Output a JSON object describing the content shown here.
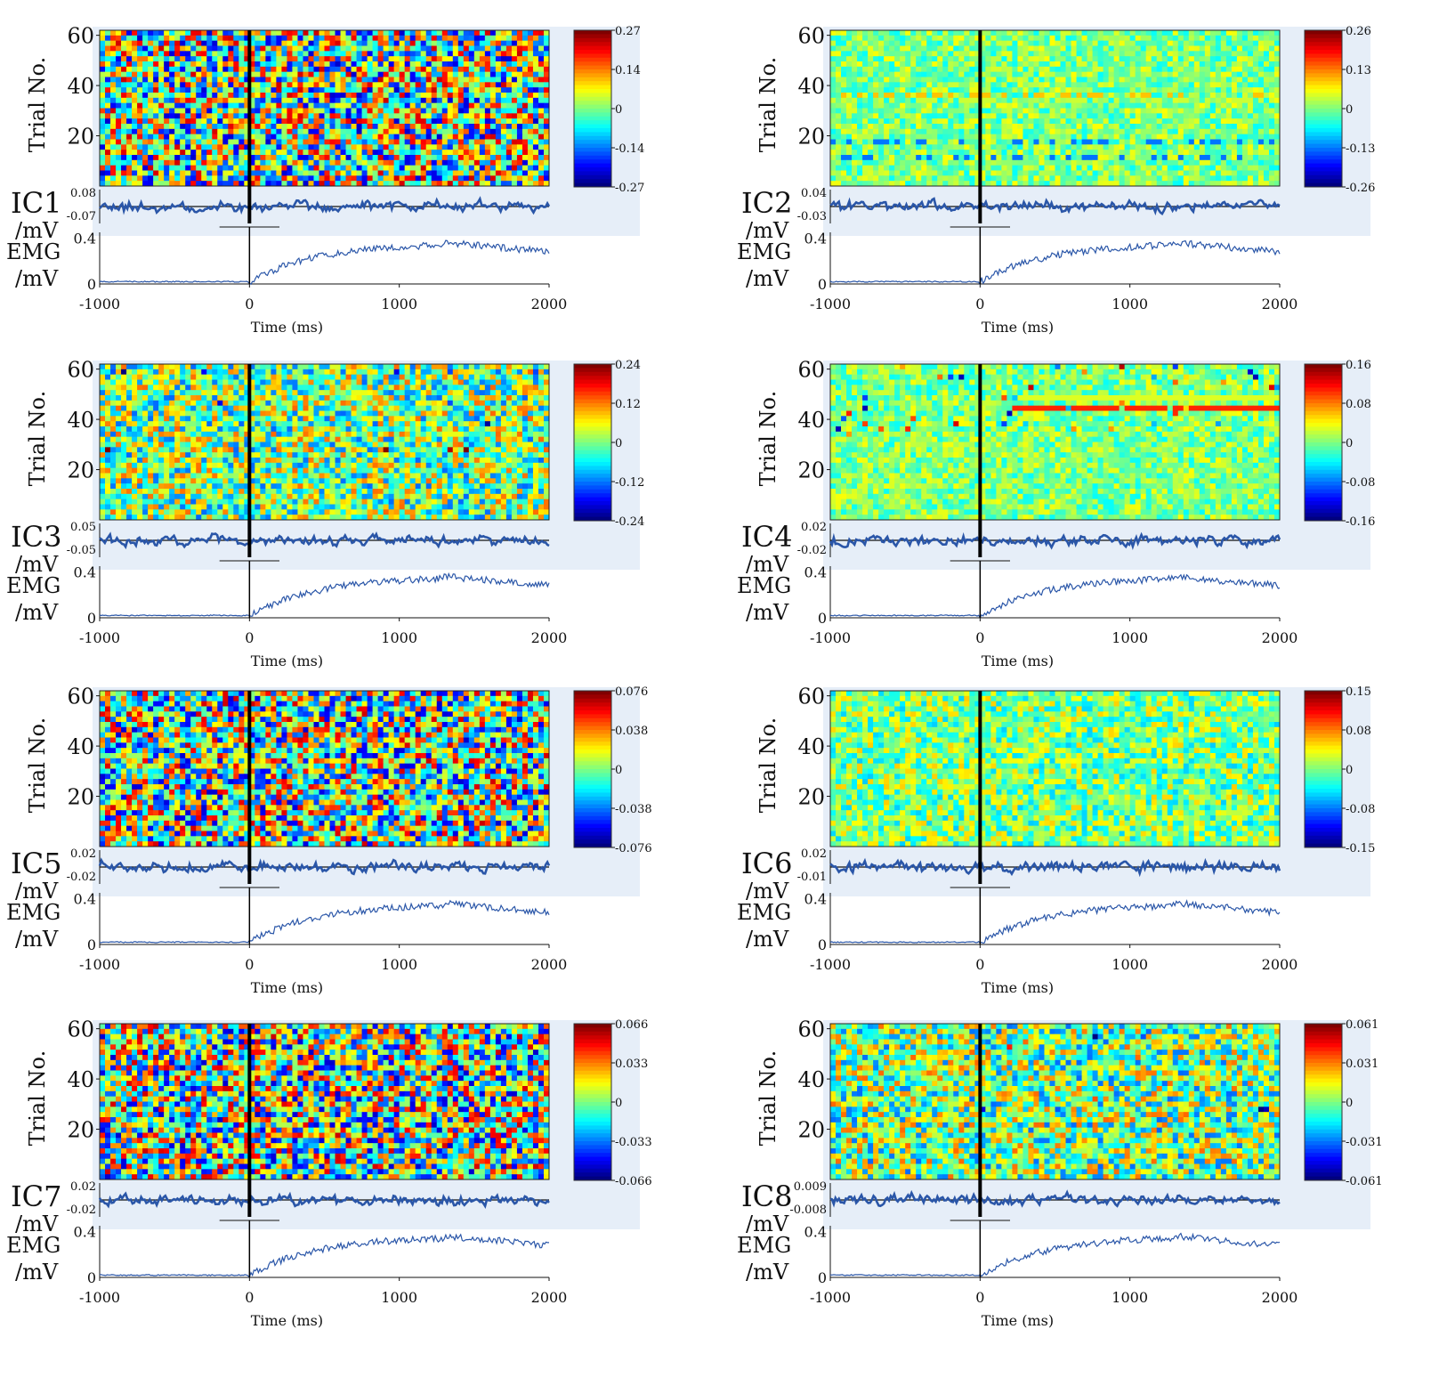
{
  "chart_data": [
    {
      "id": "IC1",
      "type": "heatmap",
      "ic_label": "IC1",
      "ylabel": "Trial No.",
      "y_ticks": [
        20,
        40,
        60
      ],
      "colorbar_ticks": [
        "0.27",
        "0.14",
        "0",
        "-0.14",
        "-0.27"
      ],
      "colorbar_range": [
        -0.27,
        0.27
      ],
      "ic_trace_ticks": [
        "0.08",
        "-0.07"
      ],
      "ic_unit": "/mV",
      "emg_label": "EMG",
      "emg_unit": "/mV",
      "emg_ticks": [
        "0.4",
        "0"
      ],
      "x_ticks": [
        "-1000",
        "0",
        "1000",
        "2000"
      ],
      "xlabel": "Time (ms)",
      "texture": "random"
    },
    {
      "id": "IC2",
      "type": "heatmap",
      "ic_label": "IC2",
      "ylabel": "Trial No.",
      "y_ticks": [
        20,
        40,
        60
      ],
      "colorbar_ticks": [
        "0.26",
        "0.13",
        "0",
        "-0.13",
        "-0.26"
      ],
      "colorbar_range": [
        -0.26,
        0.26
      ],
      "ic_trace_ticks": [
        "0.04",
        "-0.03"
      ],
      "ic_unit": "/mV",
      "emg_label": "EMG",
      "emg_unit": "/mV",
      "emg_ticks": [
        "0.4",
        "0"
      ],
      "x_ticks": [
        "-1000",
        "0",
        "1000",
        "2000"
      ],
      "xlabel": "Time (ms)",
      "texture": "bands"
    },
    {
      "id": "IC3",
      "type": "heatmap",
      "ic_label": "IC3",
      "ylabel": "Trial No.",
      "y_ticks": [
        20,
        40,
        60
      ],
      "colorbar_ticks": [
        "0.24",
        "0.12",
        "0",
        "-0.12",
        "-0.24"
      ],
      "colorbar_range": [
        -0.24,
        0.24
      ],
      "ic_trace_ticks": [
        "0.05",
        "-0.05"
      ],
      "ic_unit": "/mV",
      "emg_label": "EMG",
      "emg_unit": "/mV",
      "emg_ticks": [
        "0.4",
        "0"
      ],
      "x_ticks": [
        "-1000",
        "0",
        "1000",
        "2000"
      ],
      "xlabel": "Time (ms)",
      "texture": "mixed"
    },
    {
      "id": "IC4",
      "type": "heatmap",
      "ic_label": "IC4",
      "ylabel": "Trial No.",
      "y_ticks": [
        20,
        40,
        60
      ],
      "colorbar_ticks": [
        "0.16",
        "0.08",
        "0",
        "-0.08",
        "-0.16"
      ],
      "colorbar_range": [
        -0.16,
        0.16
      ],
      "ic_trace_ticks": [
        "0.02",
        "-0.02"
      ],
      "ic_unit": "/mV",
      "emg_label": "EMG",
      "emg_unit": "/mV",
      "emg_ticks": [
        "0.4",
        "0"
      ],
      "x_ticks": [
        "-1000",
        "0",
        "1000",
        "2000"
      ],
      "xlabel": "Time (ms)",
      "texture": "bands-top"
    },
    {
      "id": "IC5",
      "type": "heatmap",
      "ic_label": "IC5",
      "ylabel": "Trial No.",
      "y_ticks": [
        20,
        40,
        60
      ],
      "colorbar_ticks": [
        "0.076",
        "0.038",
        "0",
        "-0.038",
        "-0.076"
      ],
      "colorbar_range": [
        -0.076,
        0.076
      ],
      "ic_trace_ticks": [
        "0.02",
        "-0.02"
      ],
      "ic_unit": "/mV",
      "emg_label": "EMG",
      "emg_unit": "/mV",
      "emg_ticks": [
        "0.4",
        "0"
      ],
      "x_ticks": [
        "-1000",
        "0",
        "1000",
        "2000"
      ],
      "xlabel": "Time (ms)",
      "texture": "random"
    },
    {
      "id": "IC6",
      "type": "heatmap",
      "ic_label": "IC6",
      "ylabel": "Trial No.",
      "y_ticks": [
        20,
        40,
        60
      ],
      "colorbar_ticks": [
        "0.15",
        "0.08",
        "0",
        "-0.08",
        "-0.15"
      ],
      "colorbar_range": [
        -0.15,
        0.15
      ],
      "ic_trace_ticks": [
        "0.02",
        "-0.01"
      ],
      "ic_unit": "/mV",
      "emg_label": "EMG",
      "emg_unit": "/mV",
      "emg_ticks": [
        "0.4",
        "0"
      ],
      "x_ticks": [
        "-1000",
        "0",
        "1000",
        "2000"
      ],
      "xlabel": "Time (ms)",
      "texture": "quiet"
    },
    {
      "id": "IC7",
      "type": "heatmap",
      "ic_label": "IC7",
      "ylabel": "Trial No.",
      "y_ticks": [
        20,
        40,
        60
      ],
      "colorbar_ticks": [
        "0.066",
        "0.033",
        "0",
        "-0.033",
        "-0.066"
      ],
      "colorbar_range": [
        -0.066,
        0.066
      ],
      "ic_trace_ticks": [
        "0.02",
        "-0.02"
      ],
      "ic_unit": "/mV",
      "emg_label": "EMG",
      "emg_unit": "/mV",
      "emg_ticks": [
        "0.4",
        "0"
      ],
      "x_ticks": [
        "-1000",
        "0",
        "1000",
        "2000"
      ],
      "xlabel": "Time (ms)",
      "texture": "random"
    },
    {
      "id": "IC8",
      "type": "heatmap",
      "ic_label": "IC8",
      "ylabel": "Trial No.",
      "y_ticks": [
        20,
        40,
        60
      ],
      "colorbar_ticks": [
        "0.061",
        "0.031",
        "0",
        "-0.031",
        "-0.061"
      ],
      "colorbar_range": [
        -0.061,
        0.061
      ],
      "ic_trace_ticks": [
        "0.009",
        "-0.008"
      ],
      "ic_unit": "/mV",
      "emg_label": "EMG",
      "emg_unit": "/mV",
      "emg_ticks": [
        "0.4",
        "0"
      ],
      "x_ticks": [
        "-1000",
        "0",
        "1000",
        "2000"
      ],
      "xlabel": "Time (ms)",
      "texture": "mixed"
    }
  ]
}
